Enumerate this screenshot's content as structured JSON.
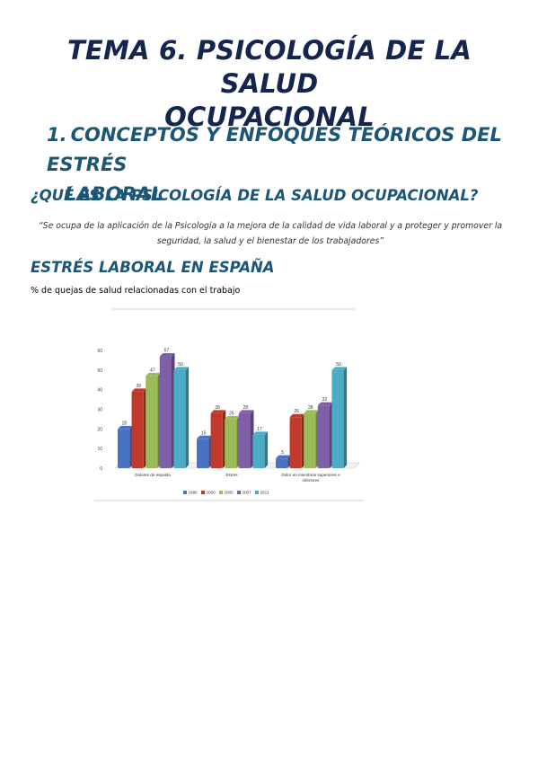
{
  "title": {
    "line1": "TEMA 6. PSICOLOGÍA DE LA SALUD",
    "line2": "OCUPACIONAL"
  },
  "section1": {
    "number": "1.",
    "line1": "CONCEPTOS Y ENFOQUES TEÓRICOS DEL ESTRÉS",
    "line2": "LABORAL"
  },
  "heading_what": "¿QUÉ ES LA PSICOLOGÍA DE LA SALUD OCUPACIONAL?",
  "quote": "“Se ocupa de la aplicación de la Psicología a la mejora de la calidad de vida laboral y a proteger y promover la seguridad, la salud y el bienestar de los trabajadores”",
  "heading_stress": "ESTRÉS LABORAL EN ESPAÑA",
  "caption": "% de quejas de salud relacionadas con el trabajo",
  "colors": {
    "title": "#14254f",
    "heading": "#1d5675"
  },
  "chart_data": {
    "type": "bar",
    "title": "",
    "xlabel": "",
    "ylabel": "",
    "ylim": [
      0,
      60
    ],
    "yticks": [
      "0",
      "10",
      "20",
      "30",
      "40",
      "50",
      "60"
    ],
    "categories": [
      [
        "Dolores de espalda"
      ],
      [
        "Estrés"
      ],
      [
        "Dolor en miembros superiores e",
        "inferiores"
      ]
    ],
    "series": [
      {
        "name": "1995",
        "color": "#4a72c4",
        "values": [
          20,
          15,
          5
        ]
      },
      {
        "name": "2000",
        "color": "#c0392b",
        "values": [
          39,
          28,
          26
        ]
      },
      {
        "name": "2005",
        "color": "#9bbb59",
        "values": [
          47,
          25,
          28
        ]
      },
      {
        "name": "2007",
        "color": "#7e5fa8",
        "values": [
          57,
          28,
          32
        ]
      },
      {
        "name": "2011",
        "color": "#4bacc6",
        "values": [
          50,
          17,
          50
        ]
      }
    ],
    "grid": false,
    "legend_position": "bottom"
  }
}
